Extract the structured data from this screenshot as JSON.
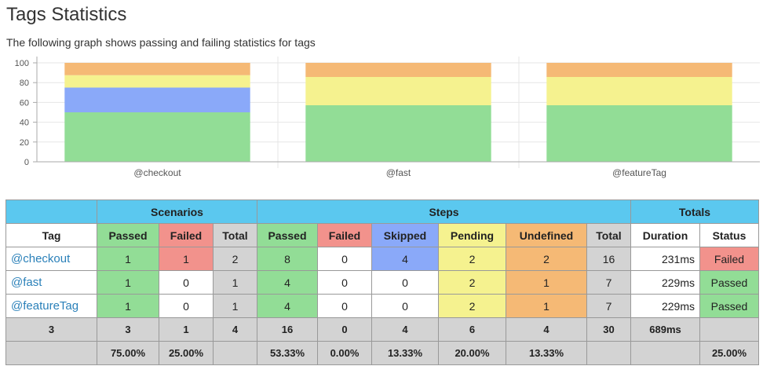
{
  "page": {
    "title": "Tags Statistics",
    "subtitle": "The following graph shows passing and failing statistics for tags"
  },
  "colors": {
    "passed": "#92dd96",
    "failed": "#f2928c",
    "skipped": "#8aa9f9",
    "pending": "#f5f28f",
    "undefined": "#f5b975",
    "header": "#5bc8ef",
    "total": "#d3d3d3",
    "link": "#2a80b9"
  },
  "chart_data": {
    "type": "bar",
    "stacked": true,
    "categories": [
      "@checkout",
      "@fast",
      "@featureTag"
    ],
    "series": [
      {
        "name": "Passed",
        "color": "#92dd96",
        "values": [
          50,
          57.14,
          57.14
        ]
      },
      {
        "name": "Skipped",
        "color": "#8aa9f9",
        "values": [
          25,
          0,
          0
        ]
      },
      {
        "name": "Pending",
        "color": "#f5f28f",
        "values": [
          12.5,
          28.57,
          28.57
        ]
      },
      {
        "name": "Undefined",
        "color": "#f5b975",
        "values": [
          12.5,
          14.29,
          14.29
        ]
      }
    ],
    "ylim": [
      0,
      100
    ],
    "yticks": [
      "0",
      "20",
      "40",
      "60",
      "80",
      "100"
    ],
    "grid": true
  },
  "table": {
    "group_headers": {
      "scenarios": "Scenarios",
      "steps": "Steps",
      "totals": "Totals"
    },
    "columns": {
      "tag": "Tag",
      "sc_passed": "Passed",
      "sc_failed": "Failed",
      "sc_total": "Total",
      "st_passed": "Passed",
      "st_failed": "Failed",
      "st_skipped": "Skipped",
      "st_pending": "Pending",
      "st_undefined": "Undefined",
      "st_total": "Total",
      "duration": "Duration",
      "status": "Status"
    },
    "rows": [
      {
        "tag": "@checkout",
        "sc_passed": "1",
        "sc_failed": "1",
        "sc_total": "2",
        "st_passed": "8",
        "st_failed": "0",
        "st_skipped": "4",
        "st_pending": "2",
        "st_undefined": "2",
        "st_total": "16",
        "duration": "231ms",
        "status": "Failed"
      },
      {
        "tag": "@fast",
        "sc_passed": "1",
        "sc_failed": "0",
        "sc_total": "1",
        "st_passed": "4",
        "st_failed": "0",
        "st_skipped": "0",
        "st_pending": "2",
        "st_undefined": "1",
        "st_total": "7",
        "duration": "229ms",
        "status": "Passed"
      },
      {
        "tag": "@featureTag",
        "sc_passed": "1",
        "sc_failed": "0",
        "sc_total": "1",
        "st_passed": "4",
        "st_failed": "0",
        "st_skipped": "0",
        "st_pending": "2",
        "st_undefined": "1",
        "st_total": "7",
        "duration": "229ms",
        "status": "Passed"
      }
    ],
    "totals": {
      "tag": "3",
      "sc_passed": "3",
      "sc_failed": "1",
      "sc_total": "4",
      "st_passed": "16",
      "st_failed": "0",
      "st_skipped": "4",
      "st_pending": "6",
      "st_undefined": "4",
      "st_total": "30",
      "duration": "689ms",
      "status": ""
    },
    "percentages": {
      "sc_passed": "75.00%",
      "sc_failed": "25.00%",
      "st_passed": "53.33%",
      "st_failed": "0.00%",
      "st_skipped": "13.33%",
      "st_pending": "20.00%",
      "st_undefined": "13.33%",
      "status": "25.00%"
    }
  }
}
